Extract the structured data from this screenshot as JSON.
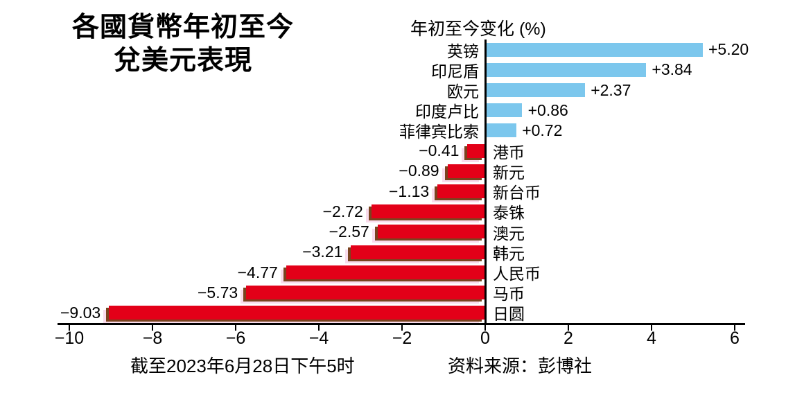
{
  "title": {
    "line1": "各國貨幣年初至今",
    "line2": "兌美元表現"
  },
  "chart_data": {
    "type": "bar",
    "orientation": "horizontal",
    "axis_title": "年初至今变化 (%)",
    "categories": [
      "英镑",
      "印尼盾",
      "欧元",
      "印度卢比",
      "菲律宾比索",
      "港币",
      "新元",
      "新台币",
      "泰铢",
      "澳元",
      "韩元",
      "人民币",
      "马币",
      "日圆"
    ],
    "values": [
      5.2,
      3.84,
      2.37,
      0.86,
      0.72,
      -0.41,
      -0.89,
      -1.13,
      -2.72,
      -2.57,
      -3.21,
      -4.77,
      -5.73,
      -9.03
    ],
    "value_labels": [
      "+5.20",
      "+3.84",
      "+2.37",
      "+0.86",
      "+0.72",
      "−0.41",
      "−0.89",
      "−1.13",
      "−2.72",
      "−2.57",
      "−3.21",
      "−4.77",
      "−5.73",
      "−9.03"
    ],
    "xlim": [
      -10.25,
      6.25
    ],
    "x_ticks": [
      -10,
      -8,
      -6,
      -4,
      -2,
      0,
      2,
      4,
      6
    ],
    "x_tick_labels": [
      "−10",
      "−8",
      "−6",
      "−4",
      "−2",
      "0",
      "2",
      "4",
      "6"
    ],
    "grid": false,
    "legend": false,
    "colors": {
      "positive_bar": "#7cc7ed",
      "negative_bar": "#e30018",
      "negative_shadow_dark": "#7a431f",
      "negative_shadow_pink": "#f9dcec",
      "axis": "#000000"
    }
  },
  "footer": {
    "as_of": "截至2023年6月28日下午5时",
    "source": "资料来源：彭博社"
  }
}
